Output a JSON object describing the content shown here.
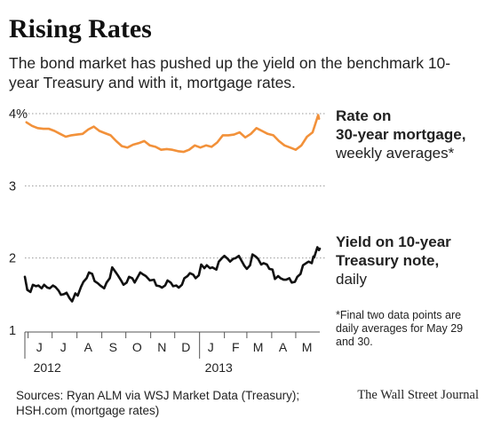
{
  "header": {
    "title": "Rising Rates",
    "subtitle": "The bond market has pushed up the yield on the benchmark 10-year Treasury and with it, mortgage rates."
  },
  "labels": {
    "mortgage": {
      "line1": "Rate on",
      "line2": "30-year mortgage,",
      "line3": "weekly averages*"
    },
    "treasury": {
      "line1": "Yield on 10-year",
      "line2": "Treasury note,",
      "line3": "daily"
    },
    "footnote": "*Final two data points are daily averages for May 29 and 30."
  },
  "footer": {
    "sources_line1": "Sources: Ryan ALM via WSJ Market Data (Treasury);",
    "sources_line2": "HSH.com (mortgage rates)",
    "credit": "The Wall Street Journal"
  },
  "colors": {
    "mortgage": "#f2913a",
    "treasury": "#111111",
    "grid": "#9a9a9a",
    "axis": "#555555"
  },
  "chart_data": {
    "type": "line",
    "title": "Rising Rates",
    "x_axis": {
      "type": "date",
      "range": [
        "2012-05-28",
        "2013-05-31"
      ],
      "month_labels": [
        {
          "label": "J",
          "date": "2012-06-15"
        },
        {
          "label": "J",
          "date": "2012-07-15"
        },
        {
          "label": "A",
          "date": "2012-08-15"
        },
        {
          "label": "S",
          "date": "2012-09-15"
        },
        {
          "label": "O",
          "date": "2012-10-15"
        },
        {
          "label": "N",
          "date": "2012-11-15"
        },
        {
          "label": "D",
          "date": "2012-12-15"
        },
        {
          "label": "J",
          "date": "2013-01-15"
        },
        {
          "label": "F",
          "date": "2013-02-15"
        },
        {
          "label": "M",
          "date": "2013-03-15"
        },
        {
          "label": "A",
          "date": "2013-04-15"
        },
        {
          "label": "M",
          "date": "2013-05-15"
        }
      ],
      "year_labels": [
        {
          "label": "2012",
          "date": "2012-06-01"
        },
        {
          "label": "2013",
          "date": "2013-01-01"
        }
      ]
    },
    "y_axis": {
      "ylim": [
        1,
        4
      ],
      "ticks": [
        1,
        2,
        3,
        4
      ],
      "tick_labels": [
        "1",
        "2",
        "3",
        "4%"
      ],
      "grid": "dotted at 2, 3, 4"
    },
    "series": [
      {
        "name": "Rate on 30-year mortgage, weekly averages*",
        "frequency": "weekly",
        "points": [
          [
            "2012-05-30",
            3.88
          ],
          [
            "2012-06-06",
            3.83
          ],
          [
            "2012-06-13",
            3.8
          ],
          [
            "2012-06-20",
            3.79
          ],
          [
            "2012-06-27",
            3.79
          ],
          [
            "2012-07-04",
            3.76
          ],
          [
            "2012-07-11",
            3.72
          ],
          [
            "2012-07-18",
            3.68
          ],
          [
            "2012-07-25",
            3.7
          ],
          [
            "2012-08-01",
            3.71
          ],
          [
            "2012-08-08",
            3.72
          ],
          [
            "2012-08-15",
            3.78
          ],
          [
            "2012-08-22",
            3.82
          ],
          [
            "2012-08-29",
            3.76
          ],
          [
            "2012-09-05",
            3.73
          ],
          [
            "2012-09-12",
            3.7
          ],
          [
            "2012-09-19",
            3.62
          ],
          [
            "2012-09-26",
            3.55
          ],
          [
            "2012-10-03",
            3.53
          ],
          [
            "2012-10-10",
            3.57
          ],
          [
            "2012-10-17",
            3.59
          ],
          [
            "2012-10-24",
            3.62
          ],
          [
            "2012-10-31",
            3.56
          ],
          [
            "2012-11-07",
            3.54
          ],
          [
            "2012-11-14",
            3.5
          ],
          [
            "2012-11-21",
            3.51
          ],
          [
            "2012-11-28",
            3.5
          ],
          [
            "2012-12-05",
            3.48
          ],
          [
            "2012-12-12",
            3.47
          ],
          [
            "2012-12-19",
            3.5
          ],
          [
            "2012-12-26",
            3.56
          ],
          [
            "2013-01-02",
            3.53
          ],
          [
            "2013-01-09",
            3.56
          ],
          [
            "2013-01-16",
            3.54
          ],
          [
            "2013-01-23",
            3.6
          ],
          [
            "2013-01-30",
            3.7
          ],
          [
            "2013-02-06",
            3.7
          ],
          [
            "2013-02-13",
            3.71
          ],
          [
            "2013-02-20",
            3.74
          ],
          [
            "2013-02-27",
            3.67
          ],
          [
            "2013-03-06",
            3.72
          ],
          [
            "2013-03-13",
            3.8
          ],
          [
            "2013-03-20",
            3.76
          ],
          [
            "2013-03-27",
            3.72
          ],
          [
            "2013-04-03",
            3.7
          ],
          [
            "2013-04-10",
            3.62
          ],
          [
            "2013-04-17",
            3.56
          ],
          [
            "2013-04-24",
            3.53
          ],
          [
            "2013-05-01",
            3.5
          ],
          [
            "2013-05-08",
            3.56
          ],
          [
            "2013-05-15",
            3.68
          ],
          [
            "2013-05-22",
            3.74
          ],
          [
            "2013-05-29",
            3.98
          ],
          [
            "2013-05-30",
            3.93
          ]
        ]
      },
      {
        "name": "Yield on 10-year Treasury note, daily",
        "frequency": "daily",
        "points": [
          [
            "2012-05-28",
            1.74
          ],
          [
            "2012-05-31",
            1.56
          ],
          [
            "2012-06-04",
            1.53
          ],
          [
            "2012-06-07",
            1.63
          ],
          [
            "2012-06-11",
            1.61
          ],
          [
            "2012-06-14",
            1.62
          ],
          [
            "2012-06-18",
            1.58
          ],
          [
            "2012-06-21",
            1.63
          ],
          [
            "2012-06-25",
            1.59
          ],
          [
            "2012-06-28",
            1.58
          ],
          [
            "2012-07-02",
            1.62
          ],
          [
            "2012-07-05",
            1.6
          ],
          [
            "2012-07-09",
            1.55
          ],
          [
            "2012-07-12",
            1.49
          ],
          [
            "2012-07-16",
            1.5
          ],
          [
            "2012-07-19",
            1.52
          ],
          [
            "2012-07-23",
            1.44
          ],
          [
            "2012-07-26",
            1.4
          ],
          [
            "2012-07-30",
            1.51
          ],
          [
            "2012-08-02",
            1.48
          ],
          [
            "2012-08-06",
            1.6
          ],
          [
            "2012-08-09",
            1.67
          ],
          [
            "2012-08-13",
            1.72
          ],
          [
            "2012-08-16",
            1.8
          ],
          [
            "2012-08-20",
            1.78
          ],
          [
            "2012-08-23",
            1.68
          ],
          [
            "2012-08-27",
            1.65
          ],
          [
            "2012-08-30",
            1.62
          ],
          [
            "2012-09-04",
            1.58
          ],
          [
            "2012-09-07",
            1.66
          ],
          [
            "2012-09-11",
            1.72
          ],
          [
            "2012-09-14",
            1.87
          ],
          [
            "2012-09-18",
            1.81
          ],
          [
            "2012-09-21",
            1.76
          ],
          [
            "2012-09-25",
            1.69
          ],
          [
            "2012-09-28",
            1.63
          ],
          [
            "2012-10-02",
            1.66
          ],
          [
            "2012-10-05",
            1.74
          ],
          [
            "2012-10-09",
            1.72
          ],
          [
            "2012-10-12",
            1.66
          ],
          [
            "2012-10-16",
            1.74
          ],
          [
            "2012-10-19",
            1.8
          ],
          [
            "2012-10-23",
            1.77
          ],
          [
            "2012-10-26",
            1.75
          ],
          [
            "2012-10-31",
            1.69
          ],
          [
            "2012-11-05",
            1.7
          ],
          [
            "2012-11-08",
            1.62
          ],
          [
            "2012-11-12",
            1.61
          ],
          [
            "2012-11-15",
            1.59
          ],
          [
            "2012-11-19",
            1.62
          ],
          [
            "2012-11-22",
            1.69
          ],
          [
            "2012-11-26",
            1.66
          ],
          [
            "2012-11-29",
            1.61
          ],
          [
            "2012-12-03",
            1.62
          ],
          [
            "2012-12-06",
            1.59
          ],
          [
            "2012-12-10",
            1.63
          ],
          [
            "2012-12-13",
            1.72
          ],
          [
            "2012-12-17",
            1.75
          ],
          [
            "2012-12-20",
            1.79
          ],
          [
            "2012-12-24",
            1.77
          ],
          [
            "2012-12-27",
            1.72
          ],
          [
            "2012-12-31",
            1.76
          ],
          [
            "2013-01-03",
            1.91
          ],
          [
            "2013-01-07",
            1.86
          ],
          [
            "2013-01-10",
            1.9
          ],
          [
            "2013-01-14",
            1.86
          ],
          [
            "2013-01-17",
            1.87
          ],
          [
            "2013-01-22",
            1.84
          ],
          [
            "2013-01-25",
            1.95
          ],
          [
            "2013-01-29",
            2.0
          ],
          [
            "2013-02-01",
            2.03
          ],
          [
            "2013-02-05",
            1.99
          ],
          [
            "2013-02-08",
            1.95
          ],
          [
            "2013-02-12",
            1.99
          ],
          [
            "2013-02-15",
            2.0
          ],
          [
            "2013-02-19",
            2.03
          ],
          [
            "2013-02-22",
            1.97
          ],
          [
            "2013-02-26",
            1.89
          ],
          [
            "2013-03-01",
            1.85
          ],
          [
            "2013-03-05",
            1.9
          ],
          [
            "2013-03-08",
            2.05
          ],
          [
            "2013-03-12",
            2.02
          ],
          [
            "2013-03-15",
            1.99
          ],
          [
            "2013-03-19",
            1.91
          ],
          [
            "2013-03-22",
            1.93
          ],
          [
            "2013-03-26",
            1.91
          ],
          [
            "2013-03-29",
            1.85
          ],
          [
            "2013-04-02",
            1.84
          ],
          [
            "2013-04-05",
            1.71
          ],
          [
            "2013-04-09",
            1.75
          ],
          [
            "2013-04-12",
            1.72
          ],
          [
            "2013-04-16",
            1.7
          ],
          [
            "2013-04-19",
            1.7
          ],
          [
            "2013-04-23",
            1.72
          ],
          [
            "2013-04-26",
            1.66
          ],
          [
            "2013-04-30",
            1.67
          ],
          [
            "2013-05-03",
            1.74
          ],
          [
            "2013-05-07",
            1.78
          ],
          [
            "2013-05-10",
            1.9
          ],
          [
            "2013-05-14",
            1.93
          ],
          [
            "2013-05-17",
            1.95
          ],
          [
            "2013-05-21",
            1.93
          ],
          [
            "2013-05-23",
            2.02
          ],
          [
            "2013-05-24",
            2.01
          ],
          [
            "2013-05-28",
            2.15
          ],
          [
            "2013-05-29",
            2.13
          ],
          [
            "2013-05-30",
            2.11
          ],
          [
            "2013-05-31",
            2.13
          ]
        ]
      }
    ]
  }
}
